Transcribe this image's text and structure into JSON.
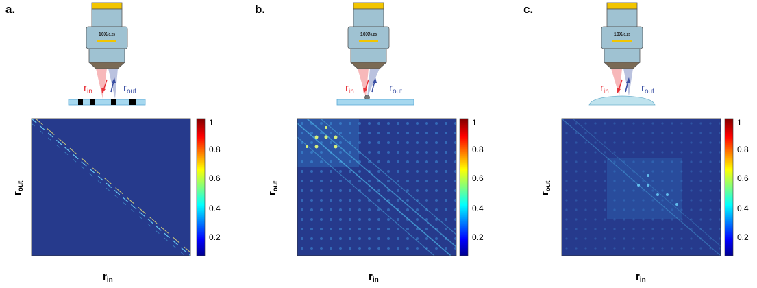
{
  "colorbar": {
    "ticks": [
      "1",
      "0.8",
      "0.6",
      "0.4",
      "0.2"
    ]
  },
  "objective": {
    "label_main": "10X/",
    "label_sub": "0.25"
  },
  "axes": {
    "y_base": "r",
    "y_sub": "out",
    "x_base": "r",
    "x_sub": "in"
  },
  "beams": {
    "in_base": "r",
    "in_sub": "in",
    "out_base": "r",
    "out_sub": "out"
  },
  "colors": {
    "in_beam": "#e8333a",
    "out_beam": "#3a4fa3",
    "map_bg": "#263a8c",
    "slide": "#a6d8ef",
    "objective_body": "#9fc2d2",
    "objective_cap": "#f2c500"
  },
  "panels": [
    {
      "label": "a.",
      "sample": "patterned-slide"
    },
    {
      "label": "b.",
      "sample": "bead-on-slide"
    },
    {
      "label": "c.",
      "sample": "curved-slide"
    }
  ]
}
